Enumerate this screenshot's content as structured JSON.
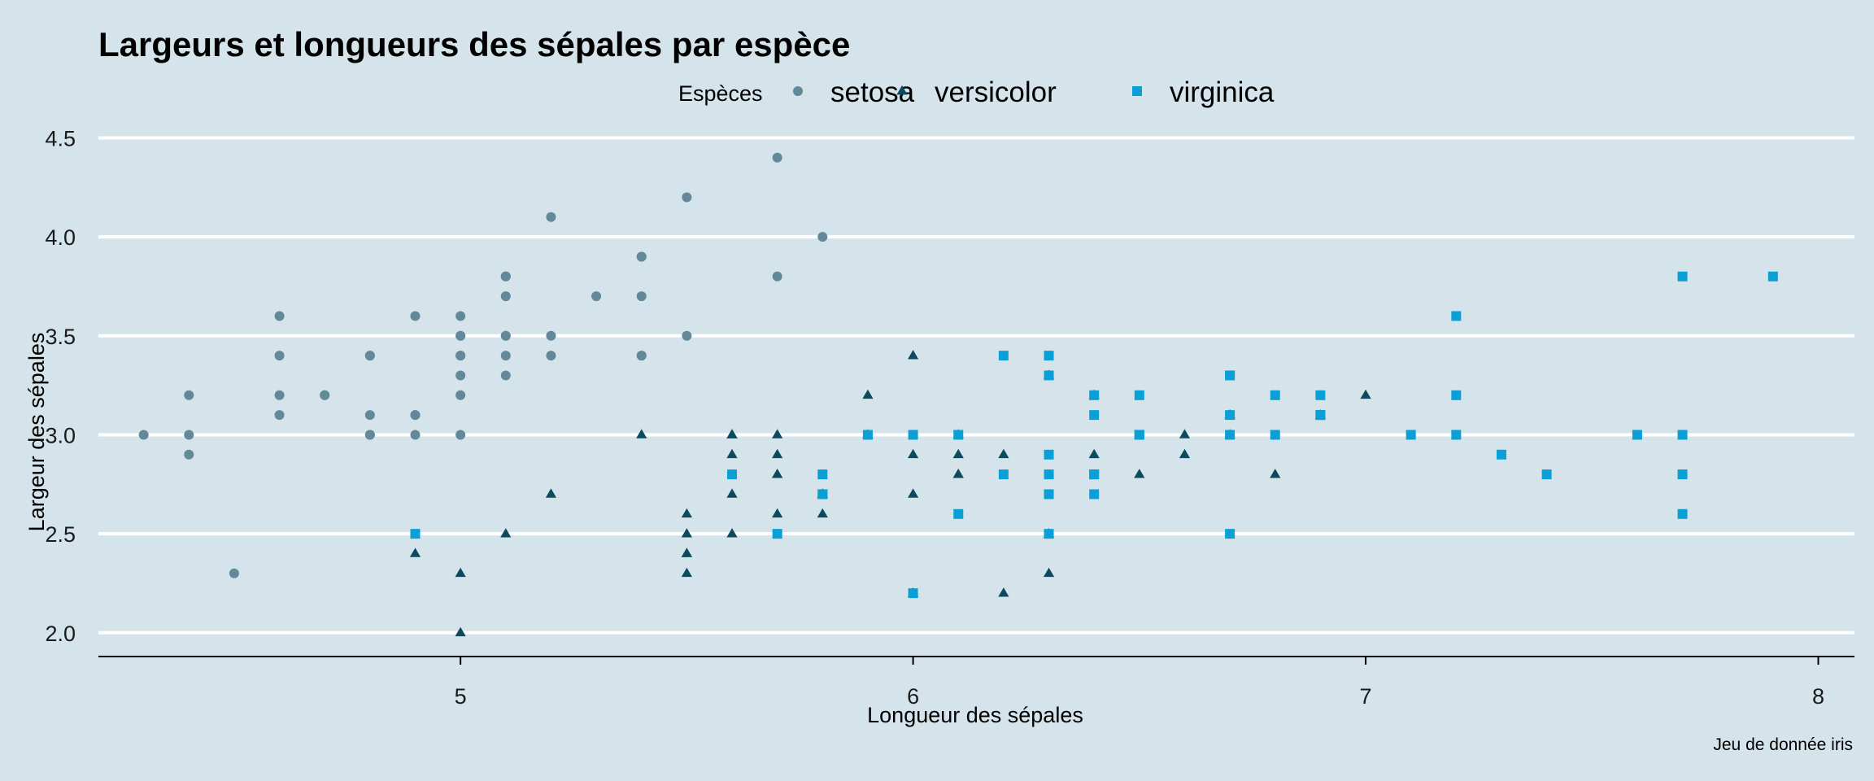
{
  "chart_data": {
    "type": "scatter",
    "title": "Largeurs et longueurs des sépales par espèce",
    "xlabel": "Longueur des sépales",
    "ylabel": "Largeur des sépales",
    "caption": "Jeu de donnée iris",
    "legend_title": "Espèces",
    "legend_position": "top",
    "grid": "horizontal major",
    "xlim": [
      4.2,
      8.08
    ],
    "ylim": [
      1.88,
      4.58
    ],
    "x_ticks": [
      5,
      6,
      7,
      8
    ],
    "y_ticks": [
      2.0,
      2.5,
      3.0,
      3.5,
      4.0,
      4.5
    ],
    "x_tick_labels": [
      "5",
      "6",
      "7",
      "8"
    ],
    "y_tick_labels": [
      "2.0",
      "2.5",
      "3.0",
      "3.5",
      "4.0",
      "4.5"
    ],
    "series": [
      {
        "name": "setosa",
        "shape": "circle",
        "color": "#62889a",
        "points": [
          [
            5.1,
            3.5
          ],
          [
            4.9,
            3.0
          ],
          [
            4.7,
            3.2
          ],
          [
            4.6,
            3.1
          ],
          [
            5.0,
            3.6
          ],
          [
            5.4,
            3.9
          ],
          [
            4.6,
            3.4
          ],
          [
            5.0,
            3.4
          ],
          [
            4.4,
            2.9
          ],
          [
            4.9,
            3.1
          ],
          [
            5.4,
            3.7
          ],
          [
            4.8,
            3.4
          ],
          [
            4.8,
            3.0
          ],
          [
            4.3,
            3.0
          ],
          [
            5.8,
            4.0
          ],
          [
            5.7,
            4.4
          ],
          [
            5.4,
            3.9
          ],
          [
            5.1,
            3.5
          ],
          [
            5.7,
            3.8
          ],
          [
            5.1,
            3.8
          ],
          [
            5.4,
            3.4
          ],
          [
            5.1,
            3.7
          ],
          [
            4.6,
            3.6
          ],
          [
            5.1,
            3.3
          ],
          [
            4.8,
            3.4
          ],
          [
            5.0,
            3.0
          ],
          [
            5.0,
            3.4
          ],
          [
            5.2,
            3.5
          ],
          [
            5.2,
            3.4
          ],
          [
            4.7,
            3.2
          ],
          [
            4.8,
            3.1
          ],
          [
            5.4,
            3.4
          ],
          [
            5.2,
            4.1
          ],
          [
            5.5,
            4.2
          ],
          [
            4.9,
            3.1
          ],
          [
            5.0,
            3.2
          ],
          [
            5.5,
            3.5
          ],
          [
            4.9,
            3.6
          ],
          [
            4.4,
            3.0
          ],
          [
            5.1,
            3.4
          ],
          [
            5.0,
            3.5
          ],
          [
            4.5,
            2.3
          ],
          [
            4.4,
            3.2
          ],
          [
            5.0,
            3.5
          ],
          [
            5.1,
            3.8
          ],
          [
            4.8,
            3.0
          ],
          [
            5.1,
            3.8
          ],
          [
            4.6,
            3.2
          ],
          [
            5.3,
            3.7
          ],
          [
            5.0,
            3.3
          ]
        ]
      },
      {
        "name": "versicolor",
        "shape": "triangle",
        "color": "#0d4a5e",
        "points": [
          [
            7.0,
            3.2
          ],
          [
            6.4,
            3.2
          ],
          [
            6.9,
            3.1
          ],
          [
            5.5,
            2.3
          ],
          [
            6.5,
            2.8
          ],
          [
            5.7,
            2.8
          ],
          [
            6.3,
            3.3
          ],
          [
            4.9,
            2.4
          ],
          [
            6.6,
            2.9
          ],
          [
            5.2,
            2.7
          ],
          [
            5.0,
            2.0
          ],
          [
            5.9,
            3.0
          ],
          [
            6.0,
            2.2
          ],
          [
            6.1,
            2.9
          ],
          [
            5.6,
            2.9
          ],
          [
            6.7,
            3.1
          ],
          [
            5.6,
            3.0
          ],
          [
            5.8,
            2.7
          ],
          [
            6.2,
            2.2
          ],
          [
            5.6,
            2.5
          ],
          [
            5.9,
            3.2
          ],
          [
            6.1,
            2.8
          ],
          [
            6.3,
            2.5
          ],
          [
            6.1,
            2.8
          ],
          [
            6.4,
            2.9
          ],
          [
            6.6,
            3.0
          ],
          [
            6.8,
            2.8
          ],
          [
            6.7,
            3.0
          ],
          [
            6.0,
            2.9
          ],
          [
            5.7,
            2.6
          ],
          [
            5.5,
            2.4
          ],
          [
            5.5,
            2.4
          ],
          [
            5.8,
            2.7
          ],
          [
            6.0,
            2.7
          ],
          [
            5.4,
            3.0
          ],
          [
            6.0,
            3.4
          ],
          [
            6.7,
            3.1
          ],
          [
            6.3,
            2.3
          ],
          [
            5.6,
            3.0
          ],
          [
            5.5,
            2.5
          ],
          [
            5.5,
            2.6
          ],
          [
            6.1,
            3.0
          ],
          [
            5.8,
            2.6
          ],
          [
            5.0,
            2.3
          ],
          [
            5.6,
            2.7
          ],
          [
            5.7,
            3.0
          ],
          [
            5.7,
            2.9
          ],
          [
            6.2,
            2.9
          ],
          [
            5.1,
            2.5
          ],
          [
            5.7,
            2.8
          ]
        ]
      },
      {
        "name": "virginica",
        "shape": "square",
        "color": "#0aa0d6",
        "points": [
          [
            6.3,
            3.3
          ],
          [
            5.8,
            2.7
          ],
          [
            7.1,
            3.0
          ],
          [
            6.3,
            2.9
          ],
          [
            6.5,
            3.0
          ],
          [
            7.6,
            3.0
          ],
          [
            4.9,
            2.5
          ],
          [
            7.3,
            2.9
          ],
          [
            6.7,
            2.5
          ],
          [
            7.2,
            3.6
          ],
          [
            6.5,
            3.2
          ],
          [
            6.4,
            2.7
          ],
          [
            6.8,
            3.0
          ],
          [
            5.7,
            2.5
          ],
          [
            5.8,
            2.8
          ],
          [
            6.4,
            3.2
          ],
          [
            6.5,
            3.0
          ],
          [
            7.7,
            3.8
          ],
          [
            7.7,
            2.6
          ],
          [
            6.0,
            2.2
          ],
          [
            6.9,
            3.2
          ],
          [
            5.6,
            2.8
          ],
          [
            7.7,
            2.8
          ],
          [
            6.3,
            2.7
          ],
          [
            6.7,
            3.3
          ],
          [
            7.2,
            3.2
          ],
          [
            6.2,
            2.8
          ],
          [
            6.1,
            3.0
          ],
          [
            6.4,
            2.8
          ],
          [
            7.2,
            3.0
          ],
          [
            7.4,
            2.8
          ],
          [
            7.9,
            3.8
          ],
          [
            6.4,
            2.8
          ],
          [
            6.3,
            2.8
          ],
          [
            6.1,
            2.6
          ],
          [
            7.7,
            3.0
          ],
          [
            6.3,
            3.4
          ],
          [
            6.4,
            3.1
          ],
          [
            6.0,
            3.0
          ],
          [
            6.9,
            3.1
          ],
          [
            6.7,
            3.1
          ],
          [
            6.9,
            3.1
          ],
          [
            5.8,
            2.7
          ],
          [
            6.8,
            3.2
          ],
          [
            6.7,
            3.3
          ],
          [
            6.7,
            3.0
          ],
          [
            6.3,
            2.5
          ],
          [
            6.5,
            3.0
          ],
          [
            6.2,
            3.4
          ],
          [
            5.9,
            3.0
          ]
        ]
      }
    ]
  }
}
